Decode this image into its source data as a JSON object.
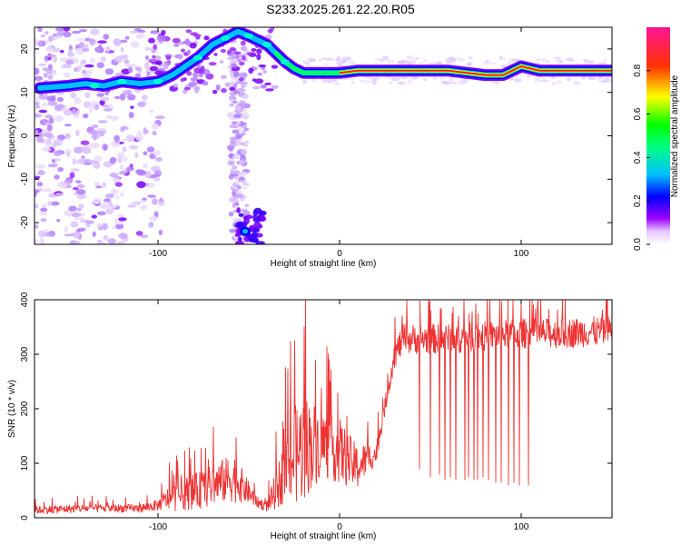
{
  "title": "S233.2025.261.22.20.R05",
  "chart_data": [
    {
      "type": "heatmap",
      "xlabel": "Height of straight line (km)",
      "ylabel": "Frequency (Hz)",
      "xlim": [
        -168,
        150
      ],
      "ylim": [
        -25,
        25
      ],
      "x_ticks": [
        -100,
        0,
        100
      ],
      "y_ticks": [
        -20,
        -10,
        0,
        10,
        20
      ],
      "colorbar": {
        "label": "Normalized spectral amplitude",
        "range": [
          0,
          1
        ],
        "ticks": [
          "0.0",
          "0.2",
          "0.4",
          "0.6",
          "0.8"
        ],
        "colors": [
          "#ffffff",
          "#9b00ff",
          "#0000ff",
          "#00bfff",
          "#00ff00",
          "#ffff00",
          "#ff0000",
          "#ff1493"
        ]
      },
      "ridge": {
        "x": [
          -165,
          -150,
          -140,
          -130,
          -120,
          -110,
          -100,
          -92,
          -85,
          -78,
          -70,
          -63,
          -56,
          -50,
          -45,
          -40,
          -35,
          -30,
          -25,
          -20,
          -15,
          -10,
          -5,
          0,
          10,
          20,
          30,
          40,
          50,
          60,
          70,
          80,
          90,
          100,
          110,
          120,
          130,
          140,
          150
        ],
        "y": [
          11,
          11.5,
          12,
          11.5,
          12.5,
          12,
          12.5,
          14,
          16,
          18,
          21,
          22.5,
          24,
          23,
          22,
          21,
          19,
          17,
          15.5,
          14.5,
          14.5,
          14.5,
          14.5,
          14.5,
          15,
          15,
          15,
          15,
          15,
          15,
          14.5,
          14,
          14,
          16,
          15,
          15,
          15,
          15,
          15
        ]
      }
    },
    {
      "type": "line",
      "xlabel": "Height of straight line (km)",
      "ylabel": "SNR (10 * v/v)",
      "xlim": [
        -168,
        150
      ],
      "ylim": [
        0,
        400
      ],
      "x_ticks": [
        -100,
        0,
        100
      ],
      "y_ticks": [
        0,
        100,
        200,
        300,
        400
      ],
      "color": "#ee3333",
      "envelope": {
        "x": [
          -168,
          -140,
          -110,
          -100,
          -95,
          -90,
          -85,
          -75,
          -65,
          -58,
          -50,
          -45,
          -40,
          -35,
          -30,
          -25,
          -20,
          -15,
          -10,
          -5,
          0,
          5,
          10,
          15,
          20,
          25,
          30,
          35,
          40,
          60,
          80,
          100,
          120,
          150
        ],
        "base": [
          12,
          15,
          15,
          20,
          28,
          30,
          35,
          42,
          55,
          60,
          40,
          25,
          18,
          40,
          70,
          85,
          100,
          110,
          120,
          110,
          105,
          90,
          80,
          100,
          110,
          200,
          290,
          320,
          320,
          320,
          325,
          330,
          330,
          335
        ],
        "amp": [
          15,
          15,
          15,
          20,
          40,
          50,
          60,
          70,
          80,
          90,
          40,
          20,
          20,
          70,
          120,
          180,
          200,
          160,
          130,
          120,
          120,
          100,
          80,
          60,
          40,
          30,
          50,
          55,
          55,
          55,
          55,
          55,
          55,
          55
        ]
      },
      "dropouts": {
        "x": [
          44,
          50,
          55,
          58,
          61,
          64,
          69,
          71,
          74,
          76,
          79,
          82,
          86,
          89,
          93,
          96,
          99,
          104
        ],
        "y": [
          90,
          75,
          80,
          70,
          75,
          70,
          70,
          75,
          70,
          70,
          75,
          70,
          65,
          65,
          60,
          65,
          60,
          60
        ]
      }
    }
  ]
}
